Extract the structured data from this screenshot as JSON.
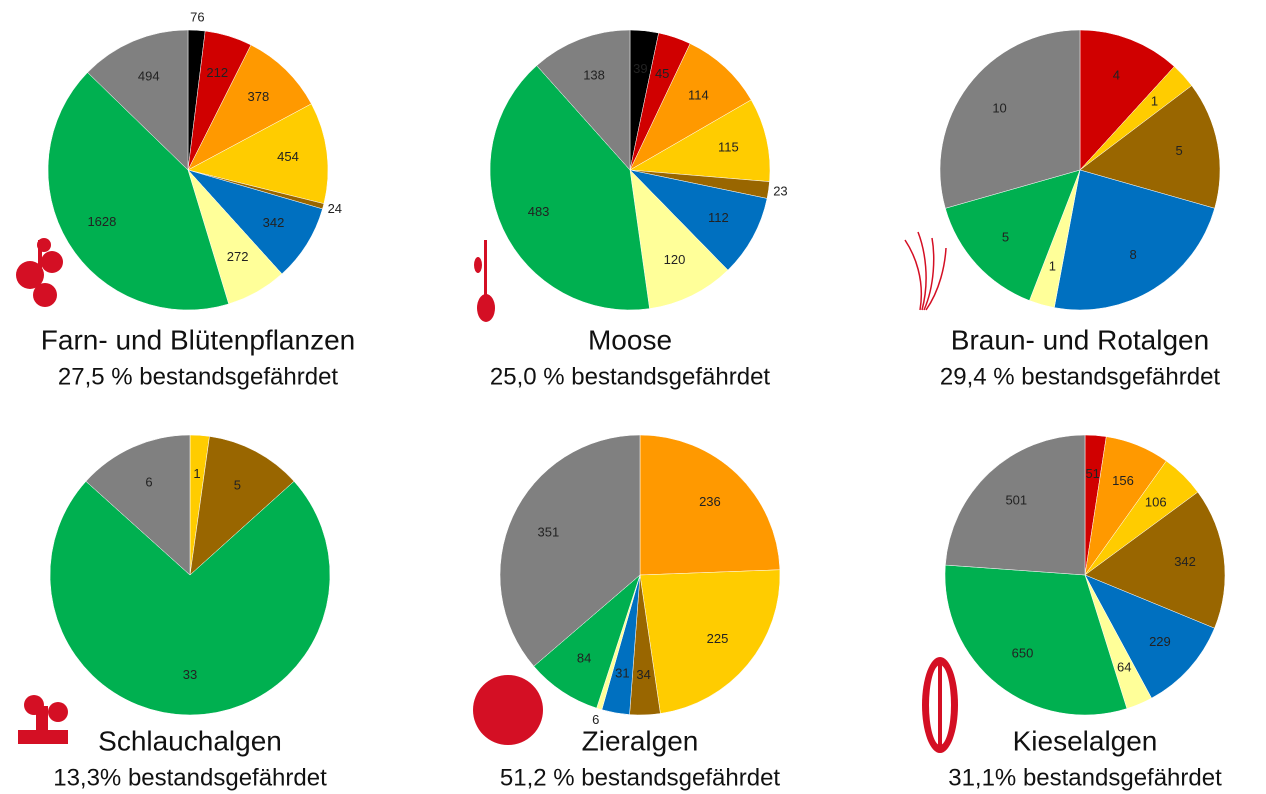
{
  "chart_data": [
    {
      "type": "pie",
      "title": "Farn- und Blütenpflanzen",
      "subtitle": "27,5 % bestandsgefährdet",
      "values": [
        76,
        212,
        378,
        454,
        24,
        342,
        272,
        1628,
        494
      ],
      "colors": [
        "#000000",
        "#d00000",
        "#ff9900",
        "#ffcc00",
        "#996600",
        "#0070c0",
        "#ffff99",
        "#00b050",
        "#808080"
      ]
    },
    {
      "type": "pie",
      "title": "Moose",
      "subtitle": "25,0 % bestandsgefährdet",
      "values": [
        39,
        45,
        114,
        115,
        23,
        112,
        120,
        483,
        138
      ],
      "colors": [
        "#000000",
        "#d00000",
        "#ff9900",
        "#ffcc00",
        "#996600",
        "#0070c0",
        "#ffff99",
        "#00b050",
        "#808080"
      ]
    },
    {
      "type": "pie",
      "title": "Braun- und Rotalgen",
      "subtitle": "29,4 % bestandsgefährdet",
      "values": [
        4,
        1,
        5,
        8,
        1,
        5,
        10
      ],
      "colors": [
        "#d00000",
        "#ffcc00",
        "#996600",
        "#0070c0",
        "#ffff99",
        "#00b050",
        "#808080"
      ]
    },
    {
      "type": "pie",
      "title": "Schlauchalgen",
      "subtitle": "13,3% bestandsgefährdet",
      "values": [
        1,
        5,
        33,
        6
      ],
      "colors": [
        "#ffcc00",
        "#996600",
        "#00b050",
        "#808080"
      ]
    },
    {
      "type": "pie",
      "title": "Zieralgen",
      "subtitle": "51,2 % bestandsgefährdet",
      "values": [
        236,
        225,
        34,
        31,
        6,
        84,
        351
      ],
      "colors": [
        "#ff9900",
        "#ffcc00",
        "#996600",
        "#0070c0",
        "#ffff99",
        "#00b050",
        "#808080"
      ]
    },
    {
      "type": "pie",
      "title": "Kieselalgen",
      "subtitle": "31,1% bestandsgefährdet",
      "values": [
        51,
        156,
        106,
        342,
        229,
        64,
        650,
        501
      ],
      "colors": [
        "#d00000",
        "#ff9900",
        "#ffcc00",
        "#996600",
        "#0070c0",
        "#ffff99",
        "#00b050",
        "#808080"
      ]
    }
  ]
}
